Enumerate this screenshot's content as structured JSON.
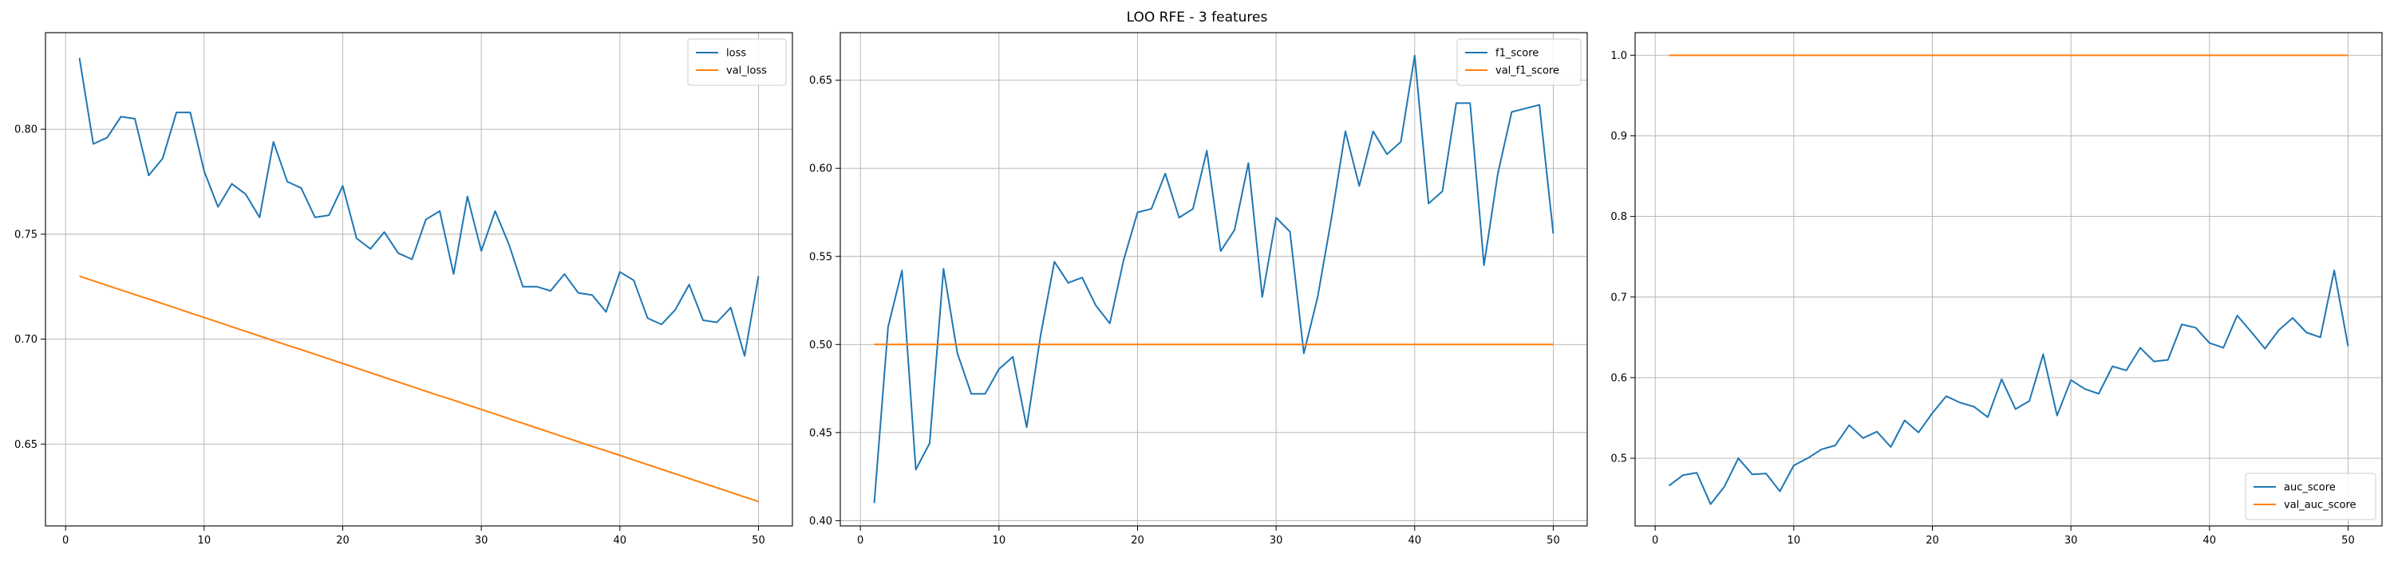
{
  "figure": {
    "title": "LOO RFE - 3 features"
  },
  "chart_data": [
    {
      "type": "line",
      "title": "",
      "xlabel": "",
      "ylabel": "",
      "xlim": [
        -1.45,
        52.45
      ],
      "ylim": [
        0.611,
        0.846
      ],
      "xticks": [
        0,
        10,
        20,
        30,
        40,
        50
      ],
      "yticks": [
        0.65,
        0.7,
        0.75,
        0.8
      ],
      "yticklabels": [
        "0.65",
        "0.70",
        "0.75",
        "0.80"
      ],
      "grid": true,
      "legend_position": "upper right",
      "x": [
        1,
        2,
        3,
        4,
        5,
        6,
        7,
        8,
        9,
        10,
        11,
        12,
        13,
        14,
        15,
        16,
        17,
        18,
        19,
        20,
        21,
        22,
        23,
        24,
        25,
        26,
        27,
        28,
        29,
        30,
        31,
        32,
        33,
        34,
        35,
        36,
        37,
        38,
        39,
        40,
        41,
        42,
        43,
        44,
        45,
        46,
        47,
        48,
        49,
        50
      ],
      "series": [
        {
          "name": "loss",
          "color": "#1f77b4",
          "values": [
            0.834,
            0.793,
            0.796,
            0.806,
            0.805,
            0.778,
            0.786,
            0.808,
            0.808,
            0.78,
            0.763,
            0.774,
            0.769,
            0.758,
            0.794,
            0.775,
            0.772,
            0.758,
            0.759,
            0.773,
            0.748,
            0.743,
            0.751,
            0.741,
            0.738,
            0.757,
            0.761,
            0.731,
            0.768,
            0.742,
            0.761,
            0.745,
            0.725,
            0.725,
            0.723,
            0.731,
            0.722,
            0.721,
            0.713,
            0.732,
            0.728,
            0.71,
            0.707,
            0.714,
            0.726,
            0.709,
            0.708,
            0.715,
            0.692,
            0.73
          ]
        },
        {
          "name": "val_loss",
          "color": "#ff7f0e",
          "values": [
            0.73,
            0.7278,
            0.7256,
            0.7234,
            0.7212,
            0.7191,
            0.7169,
            0.7147,
            0.7125,
            0.7103,
            0.7081,
            0.7059,
            0.7037,
            0.7015,
            0.6993,
            0.6971,
            0.695,
            0.6928,
            0.6906,
            0.6884,
            0.6862,
            0.684,
            0.6818,
            0.6796,
            0.6774,
            0.6752,
            0.673,
            0.6709,
            0.6687,
            0.6665,
            0.6643,
            0.6621,
            0.6599,
            0.6577,
            0.6555,
            0.6533,
            0.6511,
            0.6489,
            0.6468,
            0.6446,
            0.6424,
            0.6402,
            0.638,
            0.6358,
            0.6336,
            0.6314,
            0.6292,
            0.627,
            0.6248,
            0.6226
          ]
        }
      ]
    },
    {
      "type": "line",
      "title": "",
      "xlabel": "",
      "ylabel": "",
      "xlim": [
        -1.45,
        52.45
      ],
      "ylim": [
        0.397,
        0.677
      ],
      "xticks": [
        0,
        10,
        20,
        30,
        40,
        50
      ],
      "yticks": [
        0.4,
        0.45,
        0.5,
        0.55,
        0.6,
        0.65
      ],
      "yticklabels": [
        "0.40",
        "0.45",
        "0.50",
        "0.55",
        "0.60",
        "0.65"
      ],
      "grid": true,
      "legend_position": "upper right",
      "x": [
        1,
        2,
        3,
        4,
        5,
        6,
        7,
        8,
        9,
        10,
        11,
        12,
        13,
        14,
        15,
        16,
        17,
        18,
        19,
        20,
        21,
        22,
        23,
        24,
        25,
        26,
        27,
        28,
        29,
        30,
        31,
        32,
        33,
        34,
        35,
        36,
        37,
        38,
        39,
        40,
        41,
        42,
        43,
        44,
        45,
        46,
        47,
        48,
        49,
        50
      ],
      "series": [
        {
          "name": "f1_score",
          "color": "#1f77b4",
          "values": [
            0.41,
            0.51,
            0.542,
            0.429,
            0.444,
            0.543,
            0.495,
            0.472,
            0.472,
            0.486,
            0.493,
            0.453,
            0.505,
            0.547,
            0.535,
            0.538,
            0.522,
            0.512,
            0.548,
            0.575,
            0.577,
            0.597,
            0.572,
            0.577,
            0.61,
            0.553,
            0.565,
            0.603,
            0.527,
            0.572,
            0.564,
            0.495,
            0.527,
            0.572,
            0.621,
            0.59,
            0.621,
            0.608,
            0.615,
            0.664,
            0.58,
            0.587,
            0.637,
            0.637,
            0.545,
            0.597,
            0.632,
            0.634,
            0.636,
            0.563
          ]
        },
        {
          "name": "val_f1_score",
          "color": "#ff7f0e",
          "values": [
            0.5,
            0.5,
            0.5,
            0.5,
            0.5,
            0.5,
            0.5,
            0.5,
            0.5,
            0.5,
            0.5,
            0.5,
            0.5,
            0.5,
            0.5,
            0.5,
            0.5,
            0.5,
            0.5,
            0.5,
            0.5,
            0.5,
            0.5,
            0.5,
            0.5,
            0.5,
            0.5,
            0.5,
            0.5,
            0.5,
            0.5,
            0.5,
            0.5,
            0.5,
            0.5,
            0.5,
            0.5,
            0.5,
            0.5,
            0.5,
            0.5,
            0.5,
            0.5,
            0.5,
            0.5,
            0.5,
            0.5,
            0.5,
            0.5,
            0.5
          ]
        }
      ]
    },
    {
      "type": "line",
      "title": "",
      "xlabel": "",
      "ylabel": "",
      "xlim": [
        -1.45,
        52.45
      ],
      "ylim": [
        0.416,
        1.028
      ],
      "xticks": [
        0,
        10,
        20,
        30,
        40,
        50
      ],
      "yticks": [
        0.5,
        0.6,
        0.7,
        0.8,
        0.9,
        1.0
      ],
      "yticklabels": [
        "0.5",
        "0.6",
        "0.7",
        "0.8",
        "0.9",
        "1.0"
      ],
      "grid": true,
      "legend_position": "lower right",
      "x": [
        1,
        2,
        3,
        4,
        5,
        6,
        7,
        8,
        9,
        10,
        11,
        12,
        13,
        14,
        15,
        16,
        17,
        18,
        19,
        20,
        21,
        22,
        23,
        24,
        25,
        26,
        27,
        28,
        29,
        30,
        31,
        32,
        33,
        34,
        35,
        36,
        37,
        38,
        39,
        40,
        41,
        42,
        43,
        44,
        45,
        46,
        47,
        48,
        49,
        50
      ],
      "series": [
        {
          "name": "auc_score",
          "color": "#1f77b4",
          "values": [
            0.466,
            0.479,
            0.482,
            0.443,
            0.465,
            0.5,
            0.48,
            0.481,
            0.459,
            0.491,
            0.5,
            0.511,
            0.516,
            0.541,
            0.525,
            0.533,
            0.514,
            0.547,
            0.532,
            0.556,
            0.577,
            0.569,
            0.564,
            0.551,
            0.598,
            0.561,
            0.571,
            0.629,
            0.553,
            0.597,
            0.586,
            0.58,
            0.614,
            0.609,
            0.637,
            0.62,
            0.622,
            0.666,
            0.662,
            0.643,
            0.637,
            0.677,
            0.657,
            0.636,
            0.659,
            0.674,
            0.656,
            0.65,
            0.733,
            0.639
          ]
        },
        {
          "name": "val_auc_score",
          "color": "#ff7f0e",
          "values": [
            1,
            1,
            1,
            1,
            1,
            1,
            1,
            1,
            1,
            1,
            1,
            1,
            1,
            1,
            1,
            1,
            1,
            1,
            1,
            1,
            1,
            1,
            1,
            1,
            1,
            1,
            1,
            1,
            1,
            1,
            1,
            1,
            1,
            1,
            1,
            1,
            1,
            1,
            1,
            1,
            1,
            1,
            1,
            1,
            1,
            1,
            1,
            1,
            1,
            1
          ]
        }
      ]
    }
  ]
}
